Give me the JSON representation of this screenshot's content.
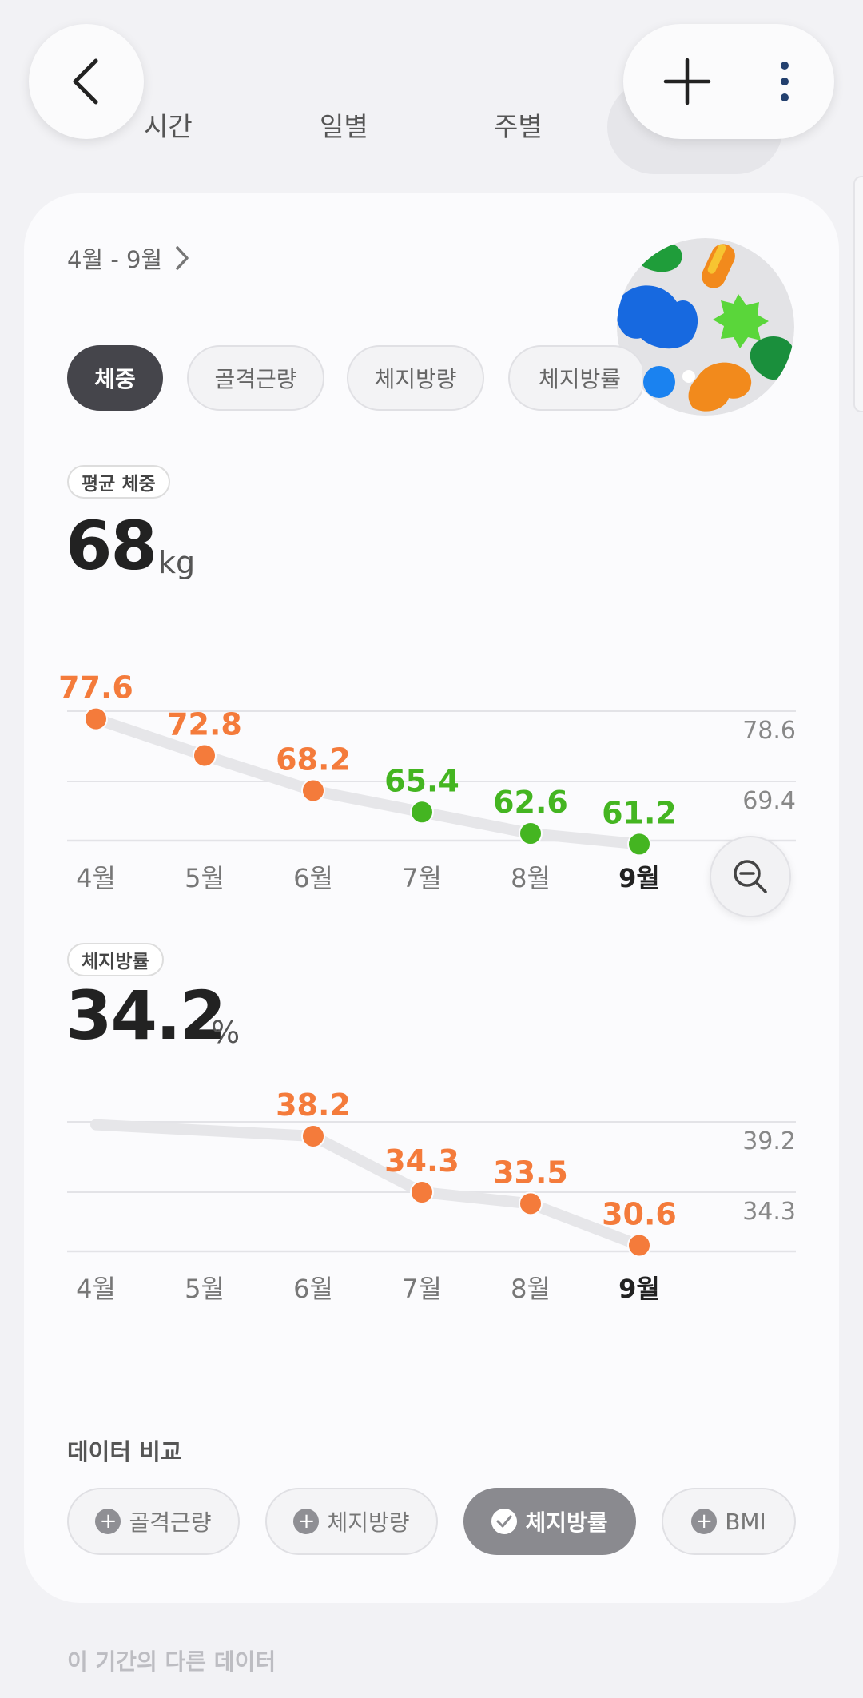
{
  "header": {
    "period_tabs": [
      "시간",
      "일별",
      "주별"
    ]
  },
  "card": {
    "range_label": "4월 - 9월",
    "metric_tabs": [
      "체중",
      "골격근량",
      "체지방량",
      "체지방률"
    ]
  },
  "weight": {
    "badge": "평균 체중",
    "value": "68",
    "unit": "kg",
    "zoom_icon": "zoom-out-icon"
  },
  "fat_rate": {
    "badge": "체지방률",
    "value": "34.2",
    "unit": "%"
  },
  "chart_data": [
    {
      "type": "line",
      "categories": [
        "4월",
        "5월",
        "6월",
        "7월",
        "8월",
        "9월"
      ],
      "values": [
        77.6,
        72.8,
        68.2,
        65.4,
        62.6,
        61.2
      ],
      "point_colors": [
        "#f47b3b",
        "#f47b3b",
        "#f47b3b",
        "#44b521",
        "#44b521",
        "#44b521"
      ],
      "point_labels": [
        "77.6",
        "72.8",
        "68.2",
        "65.4",
        "62.6",
        "61.2"
      ],
      "gridline_labels": [
        "78.6",
        "69.4"
      ],
      "gridline_values": [
        78.6,
        69.4
      ],
      "highlight_category": "9월"
    },
    {
      "type": "line",
      "categories": [
        "4월",
        "5월",
        "6월",
        "7월",
        "8월",
        "9월"
      ],
      "values": [
        null,
        null,
        38.2,
        34.3,
        33.5,
        30.6
      ],
      "line_start": [
        39.0,
        38.2
      ],
      "point_colors": [
        "",
        "",
        "#f47b3b",
        "#f47b3b",
        "#f47b3b",
        "#f47b3b"
      ],
      "point_labels": [
        "",
        "",
        "38.2",
        "34.3",
        "33.5",
        "30.6"
      ],
      "gridline_labels": [
        "39.2",
        "34.3"
      ],
      "gridline_values": [
        39.2,
        34.3
      ],
      "highlight_category": "9월"
    }
  ],
  "compare": {
    "title": "데이터 비교",
    "chips": [
      {
        "label": "골격근량",
        "icon": "plus-icon",
        "active": false
      },
      {
        "label": "체지방량",
        "icon": "plus-icon",
        "active": false
      },
      {
        "label": "체지방률",
        "icon": "check-icon",
        "active": true
      },
      {
        "label": "BMI",
        "icon": "plus-icon",
        "active": false
      }
    ]
  },
  "footer": {
    "other_data": "이 기간의 다른 데이터"
  }
}
